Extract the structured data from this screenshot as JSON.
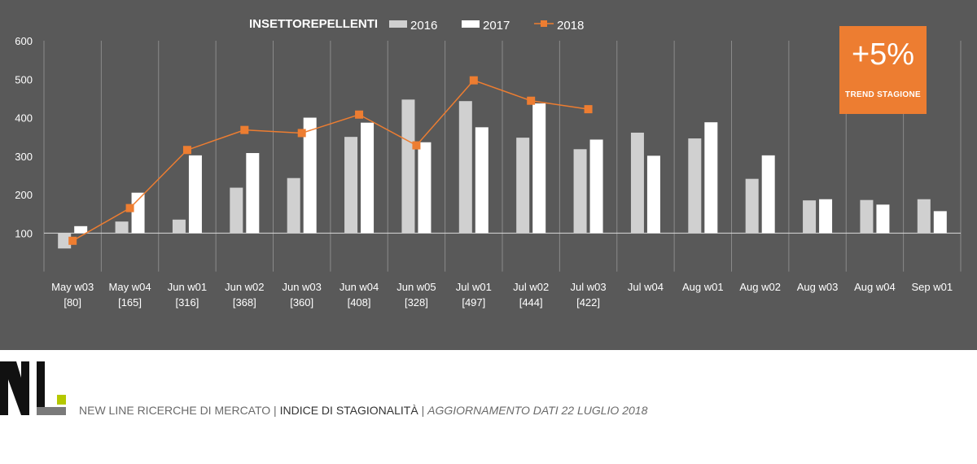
{
  "chart_data": {
    "type": "bar",
    "title": "INSETTOREPELLENTI",
    "categories": [
      "May w03",
      "May w04",
      "Jun w01",
      "Jun w02",
      "Jun w03",
      "Jun w04",
      "Jun w05",
      "Jul w01",
      "Jul w02",
      "Jul w03",
      "Jul w04",
      "Aug w01",
      "Aug w02",
      "Aug w03",
      "Aug w04",
      "Sep w01"
    ],
    "category_sublabels": [
      "[80]",
      "[165]",
      "[316]",
      "[368]",
      "[360]",
      "[408]",
      "[328]",
      "[497]",
      "[444]",
      "[422]",
      "",
      "",
      "",
      "",
      "",
      ""
    ],
    "series": [
      {
        "name": "2016",
        "type": "bar",
        "color": "#d0d0d0",
        "values": [
          60,
          130,
          135,
          218,
          243,
          350,
          447,
          443,
          348,
          318,
          361,
          346,
          241,
          185,
          186,
          188
        ]
      },
      {
        "name": "2017",
        "type": "bar",
        "color": "#ffffff",
        "values": [
          118,
          205,
          302,
          308,
          400,
          387,
          336,
          375,
          437,
          343,
          301,
          388,
          302,
          188,
          174,
          157
        ]
      },
      {
        "name": "2018",
        "type": "line",
        "color": "#ed7d31",
        "values": [
          80,
          165,
          316,
          368,
          360,
          408,
          328,
          497,
          444,
          422,
          null,
          null,
          null,
          null,
          null,
          null
        ]
      }
    ],
    "ylim": [
      0,
      600
    ],
    "yticks": [
      100,
      200,
      300,
      400,
      500,
      600
    ],
    "baseline": 100,
    "grid": true,
    "legend_position": "top"
  },
  "trend": {
    "value": "+5%",
    "label": "TREND  STAGIONE"
  },
  "footer": {
    "company": "NEW LINE RICERCHE DI MERCATO",
    "sep1": " | ",
    "index": "INDICE DI STAGIONALITÀ",
    "sep2": " | ",
    "update": "AGGIORNAMENTO DATI 22 LUGLIO 2018"
  },
  "logo": {
    "text": "NL",
    "accent_color": "#b5c800"
  }
}
